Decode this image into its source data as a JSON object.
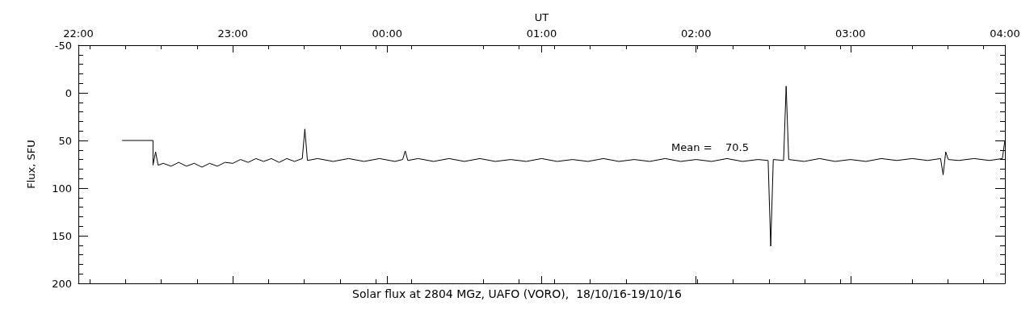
{
  "chart_data": {
    "type": "line",
    "title": "Solar flux at 2804 MGz, UAFO (VORO),  18/10/16-19/10/16",
    "xlabel": "UT",
    "ylabel": "Flux, SFU",
    "color": "#000000",
    "marker": "none",
    "line_style": "solid",
    "grid": false,
    "annotations": [
      "Mean =    70.5"
    ],
    "xlim": [
      "--10-18T22:00",
      "--10-19T04:00"
    ],
    "xticks": [
      {
        "value": "--10-18T22:00",
        "label": "22:00"
      },
      {
        "value": "--10-18T23:00",
        "label": "23:00"
      },
      {
        "value": "--10-19T00:00",
        "label": "00:00"
      },
      {
        "value": "--10-19T01:00",
        "label": "01:00"
      },
      {
        "value": "--10-19T02:00",
        "label": "02:00"
      },
      {
        "value": "--10-19T03:00",
        "label": "03:00"
      },
      {
        "value": "--10-19T04:00",
        "label": "04:00"
      }
    ],
    "ylim": [
      200,
      -50
    ],
    "yticks": [
      -50,
      0,
      50,
      100,
      150,
      200
    ],
    "x": [
      "--10-18T22:17",
      "--10-18T22:29",
      "--10-18T22:29",
      "--10-18T22:30",
      "--10-18T22:31",
      "--10-18T22:33",
      "--10-18T22:36",
      "--10-18T22:39",
      "--10-18T22:42",
      "--10-18T22:45",
      "--10-18T22:48",
      "--10-18T22:51",
      "--10-18T22:54",
      "--10-18T22:57",
      "--10-18T23:00",
      "--10-18T23:03",
      "--10-18T23:06",
      "--10-18T23:09",
      "--10-18T23:12",
      "--10-18T23:15",
      "--10-18T23:18",
      "--10-18T23:21",
      "--10-18T23:24",
      "--10-18T23:27",
      "--10-18T23:28",
      "--10-18T23:29",
      "--10-18T23:33",
      "--10-18T23:39",
      "--10-18T23:45",
      "--10-18T23:51",
      "--10-18T23:57",
      "--10-19T00:03",
      "--10-19T00:06",
      "--10-19T00:07",
      "--10-19T00:08",
      "--10-19T00:12",
      "--10-19T00:18",
      "--10-19T00:24",
      "--10-19T00:30",
      "--10-19T00:36",
      "--10-19T00:42",
      "--10-19T00:48",
      "--10-19T00:54",
      "--10-19T01:00",
      "--10-19T01:06",
      "--10-19T01:12",
      "--10-19T01:18",
      "--10-19T01:24",
      "--10-19T01:30",
      "--10-19T01:36",
      "--10-19T01:42",
      "--10-19T01:48",
      "--10-19T01:54",
      "--10-19T02:00",
      "--10-19T02:06",
      "--10-19T02:12",
      "--10-19T02:18",
      "--10-19T02:24",
      "--10-19T02:28",
      "--10-19T02:29",
      "--10-19T02:30",
      "--10-19T02:34",
      "--10-19T02:35",
      "--10-19T02:36",
      "--10-19T02:42",
      "--10-19T02:48",
      "--10-19T02:54",
      "--10-19T03:00",
      "--10-19T03:06",
      "--10-19T03:12",
      "--10-19T03:18",
      "--10-19T03:24",
      "--10-19T03:30",
      "--10-19T03:35",
      "--10-19T03:36",
      "--10-19T03:37",
      "--10-19T03:38",
      "--10-19T03:42",
      "--10-19T03:48",
      "--10-19T03:54",
      "--10-19T03:59",
      "--10-19T04:00"
    ],
    "values": [
      50,
      50,
      76,
      62,
      76,
      74,
      77,
      73,
      77,
      74,
      78,
      74,
      77,
      73,
      74,
      70,
      73,
      69,
      72,
      69,
      73,
      69,
      72,
      69,
      38,
      71,
      69,
      72,
      69,
      72,
      69,
      72,
      70,
      61,
      71,
      69,
      72,
      69,
      72,
      69,
      72,
      70,
      72,
      69,
      72,
      70,
      72,
      69,
      72,
      70,
      72,
      69,
      72,
      70,
      72,
      69,
      72,
      70,
      71,
      161,
      70,
      71,
      -7,
      70,
      72,
      69,
      72,
      70,
      72,
      69,
      71,
      69,
      71,
      69,
      86,
      62,
      70,
      71,
      69,
      71,
      69,
      50
    ]
  }
}
